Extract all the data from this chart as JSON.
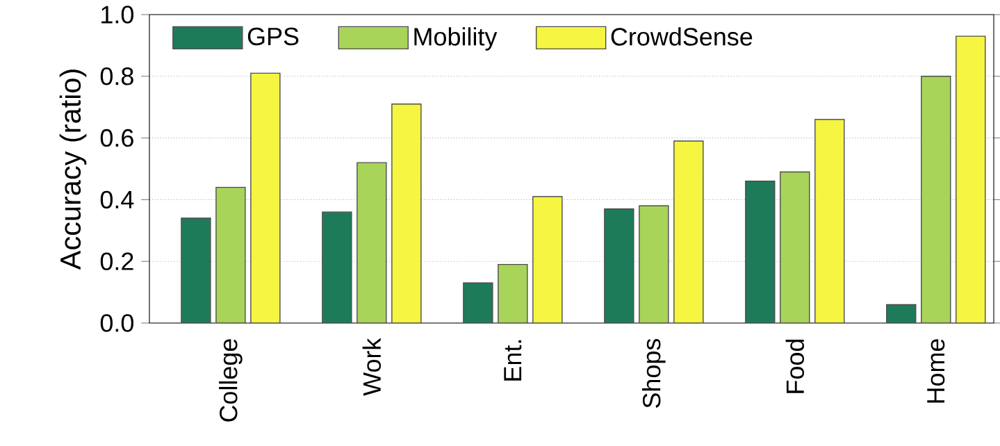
{
  "chart_data": {
    "type": "bar",
    "ylabel": "Accuracy (ratio)",
    "categories": [
      "College",
      "Work",
      "Ent.",
      "Shops",
      "Food",
      "Home"
    ],
    "series": [
      {
        "name": "GPS",
        "color": "#1e7b5a",
        "values": [
          0.34,
          0.36,
          0.13,
          0.37,
          0.46,
          0.06
        ]
      },
      {
        "name": "Mobility",
        "color": "#a8d45a",
        "values": [
          0.44,
          0.52,
          0.19,
          0.38,
          0.49,
          0.8
        ]
      },
      {
        "name": "CrowdSense",
        "color": "#f5f542",
        "values": [
          0.81,
          0.71,
          0.41,
          0.59,
          0.66,
          0.93
        ]
      }
    ],
    "ylim": [
      0,
      1.0
    ],
    "yticks": [
      {
        "value": 0,
        "label": "0.0"
      },
      {
        "value": 0.2,
        "label": "0.2"
      },
      {
        "value": 0.4,
        "label": "0.4"
      },
      {
        "value": 0.6,
        "label": "0.6"
      },
      {
        "value": 0.8,
        "label": "0.8"
      },
      {
        "value": 1.0,
        "label": "1.0"
      }
    ],
    "grid": "y",
    "legend": "top"
  }
}
